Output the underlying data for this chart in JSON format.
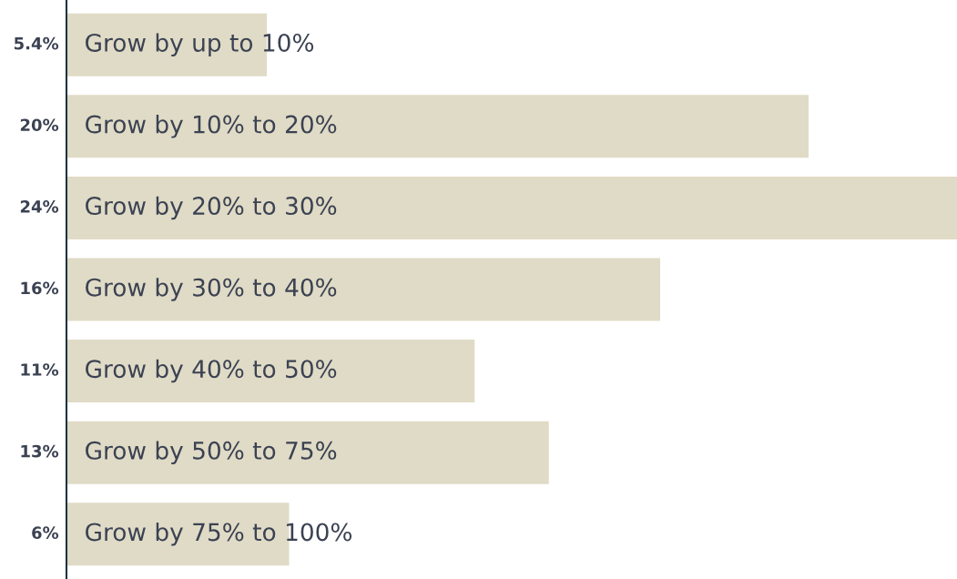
{
  "chart_data": {
    "type": "bar",
    "orientation": "horizontal",
    "categories": [
      "Grow by up to 10%",
      "Grow by 10% to 20%",
      "Grow by 20% to 30%",
      "Grow by 30% to 40%",
      "Grow by 40% to 50%",
      "Grow by 50% to 75%",
      "Grow by 75% to 100%"
    ],
    "values": [
      5.4,
      20,
      24,
      16,
      11,
      13,
      6
    ],
    "value_labels": [
      "5.4%",
      "20%",
      "24%",
      "16%",
      "11%",
      "13%",
      "6%"
    ],
    "color": "#e0dbc6"
  }
}
